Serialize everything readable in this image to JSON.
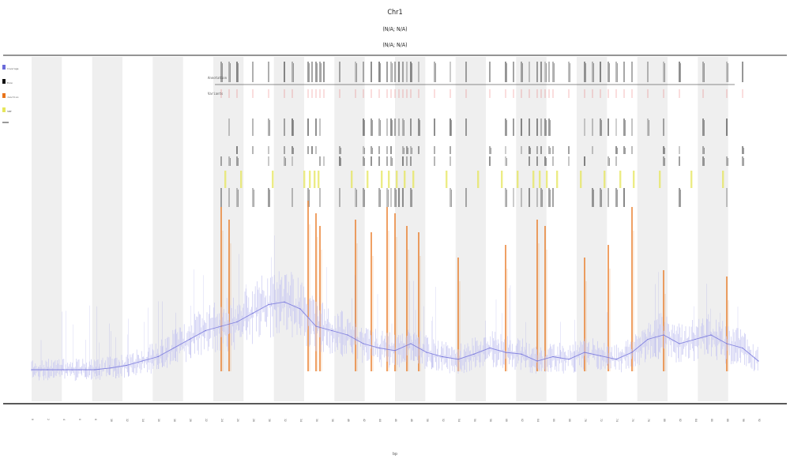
{
  "chart_data": {
    "type": "line",
    "title_lines": [
      "Chr1",
      "(N/A; N/A)",
      "(N/A; N/A)"
    ],
    "xlabel": "bp",
    "ylabel": "",
    "grid": true,
    "legend_position": "top-left",
    "legend": [
      "Coverage",
      "Exon",
      "Junction",
      "SNP"
    ],
    "track_labels": [
      "Annotation",
      "Variants"
    ],
    "x_range": [
      0,
      92
    ],
    "bands": 12,
    "colors": {
      "coverage": "#6b6bd9",
      "coverage_fill": "#c9c9f2",
      "junction": "#e8741b",
      "snp": "#e6e65c",
      "exon": "#111111",
      "variant": "#e04040",
      "band": "#efefef"
    },
    "series": [
      {
        "name": "Coverage",
        "x": [
          0,
          2,
          4,
          6,
          8,
          10,
          12,
          14,
          16,
          18,
          20,
          22,
          24,
          26,
          28,
          30,
          32,
          34,
          36,
          38,
          40,
          42,
          44,
          46,
          48,
          50,
          52,
          54,
          56,
          58,
          60,
          62,
          64,
          66,
          68,
          70,
          72,
          74,
          76,
          78,
          80,
          82,
          84,
          86,
          88,
          90,
          92
        ],
        "values": [
          2.0,
          2.0,
          2.0,
          2.0,
          2.0,
          2.2,
          2.5,
          3.0,
          3.5,
          4.5,
          5.5,
          6.5,
          7.0,
          7.5,
          8.5,
          9.5,
          9.8,
          9.0,
          7.0,
          6.5,
          6.0,
          5.0,
          4.5,
          4.2,
          5.0,
          4.0,
          3.5,
          3.2,
          3.8,
          4.5,
          4.0,
          3.8,
          3.0,
          3.5,
          3.2,
          4.0,
          3.6,
          3.2,
          4.0,
          5.5,
          6.0,
          5.0,
          5.5,
          6.0,
          5.0,
          4.5,
          3.0
        ]
      }
    ],
    "junctions": [
      {
        "x": 24,
        "height": 26.0
      },
      {
        "x": 25,
        "height": 24.0
      },
      {
        "x": 35,
        "height": 27.0
      },
      {
        "x": 36,
        "height": 25.0
      },
      {
        "x": 36.5,
        "height": 23.0
      },
      {
        "x": 41,
        "height": 24.0
      },
      {
        "x": 43,
        "height": 22.0
      },
      {
        "x": 45,
        "height": 26.0
      },
      {
        "x": 46,
        "height": 25.0
      },
      {
        "x": 47.5,
        "height": 23.0
      },
      {
        "x": 49,
        "height": 22.0
      },
      {
        "x": 54,
        "height": 18.0
      },
      {
        "x": 60,
        "height": 20.0
      },
      {
        "x": 64,
        "height": 24.0
      },
      {
        "x": 65,
        "height": 23.0
      },
      {
        "x": 70,
        "height": 18.0
      },
      {
        "x": 73,
        "height": 20.0
      },
      {
        "x": 76,
        "height": 26.0
      },
      {
        "x": 80,
        "height": 16.0
      },
      {
        "x": 88,
        "height": 15.0
      }
    ],
    "exons": [
      24,
      25,
      26,
      28,
      30,
      32,
      33,
      35,
      35.5,
      36,
      36.5,
      37,
      39,
      41,
      42,
      43,
      44,
      45,
      45.5,
      46,
      46.5,
      47,
      47.5,
      48,
      49,
      51,
      53,
      55,
      58,
      60,
      61,
      62,
      63,
      64,
      64.5,
      65,
      65.5,
      66,
      68,
      70,
      71,
      72,
      73,
      74,
      75,
      76,
      78,
      80,
      82,
      85,
      88,
      90
    ],
    "snps": [
      24.5,
      26.5,
      30.5,
      34.5,
      35.2,
      35.8,
      36.3,
      40.5,
      42.5,
      44.3,
      45.2,
      46.2,
      47.2,
      48.3,
      52.5,
      56.5,
      59.5,
      61.5,
      63.5,
      64.3,
      65.2,
      66.5,
      69.5,
      72.5,
      74.5,
      76.2,
      79.5,
      83.5,
      87.5
    ],
    "x_ticks": [
      "0",
      "2",
      "4",
      "6",
      "8",
      "10",
      "12",
      "14",
      "16",
      "18",
      "20",
      "22",
      "24",
      "26",
      "28",
      "30",
      "32",
      "34",
      "36",
      "38",
      "40",
      "42",
      "44",
      "46",
      "48",
      "50",
      "52",
      "54",
      "56",
      "58",
      "60",
      "62",
      "64",
      "66",
      "68",
      "70",
      "72",
      "74",
      "76",
      "78",
      "80",
      "82",
      "84",
      "86",
      "88",
      "90",
      "92"
    ]
  }
}
